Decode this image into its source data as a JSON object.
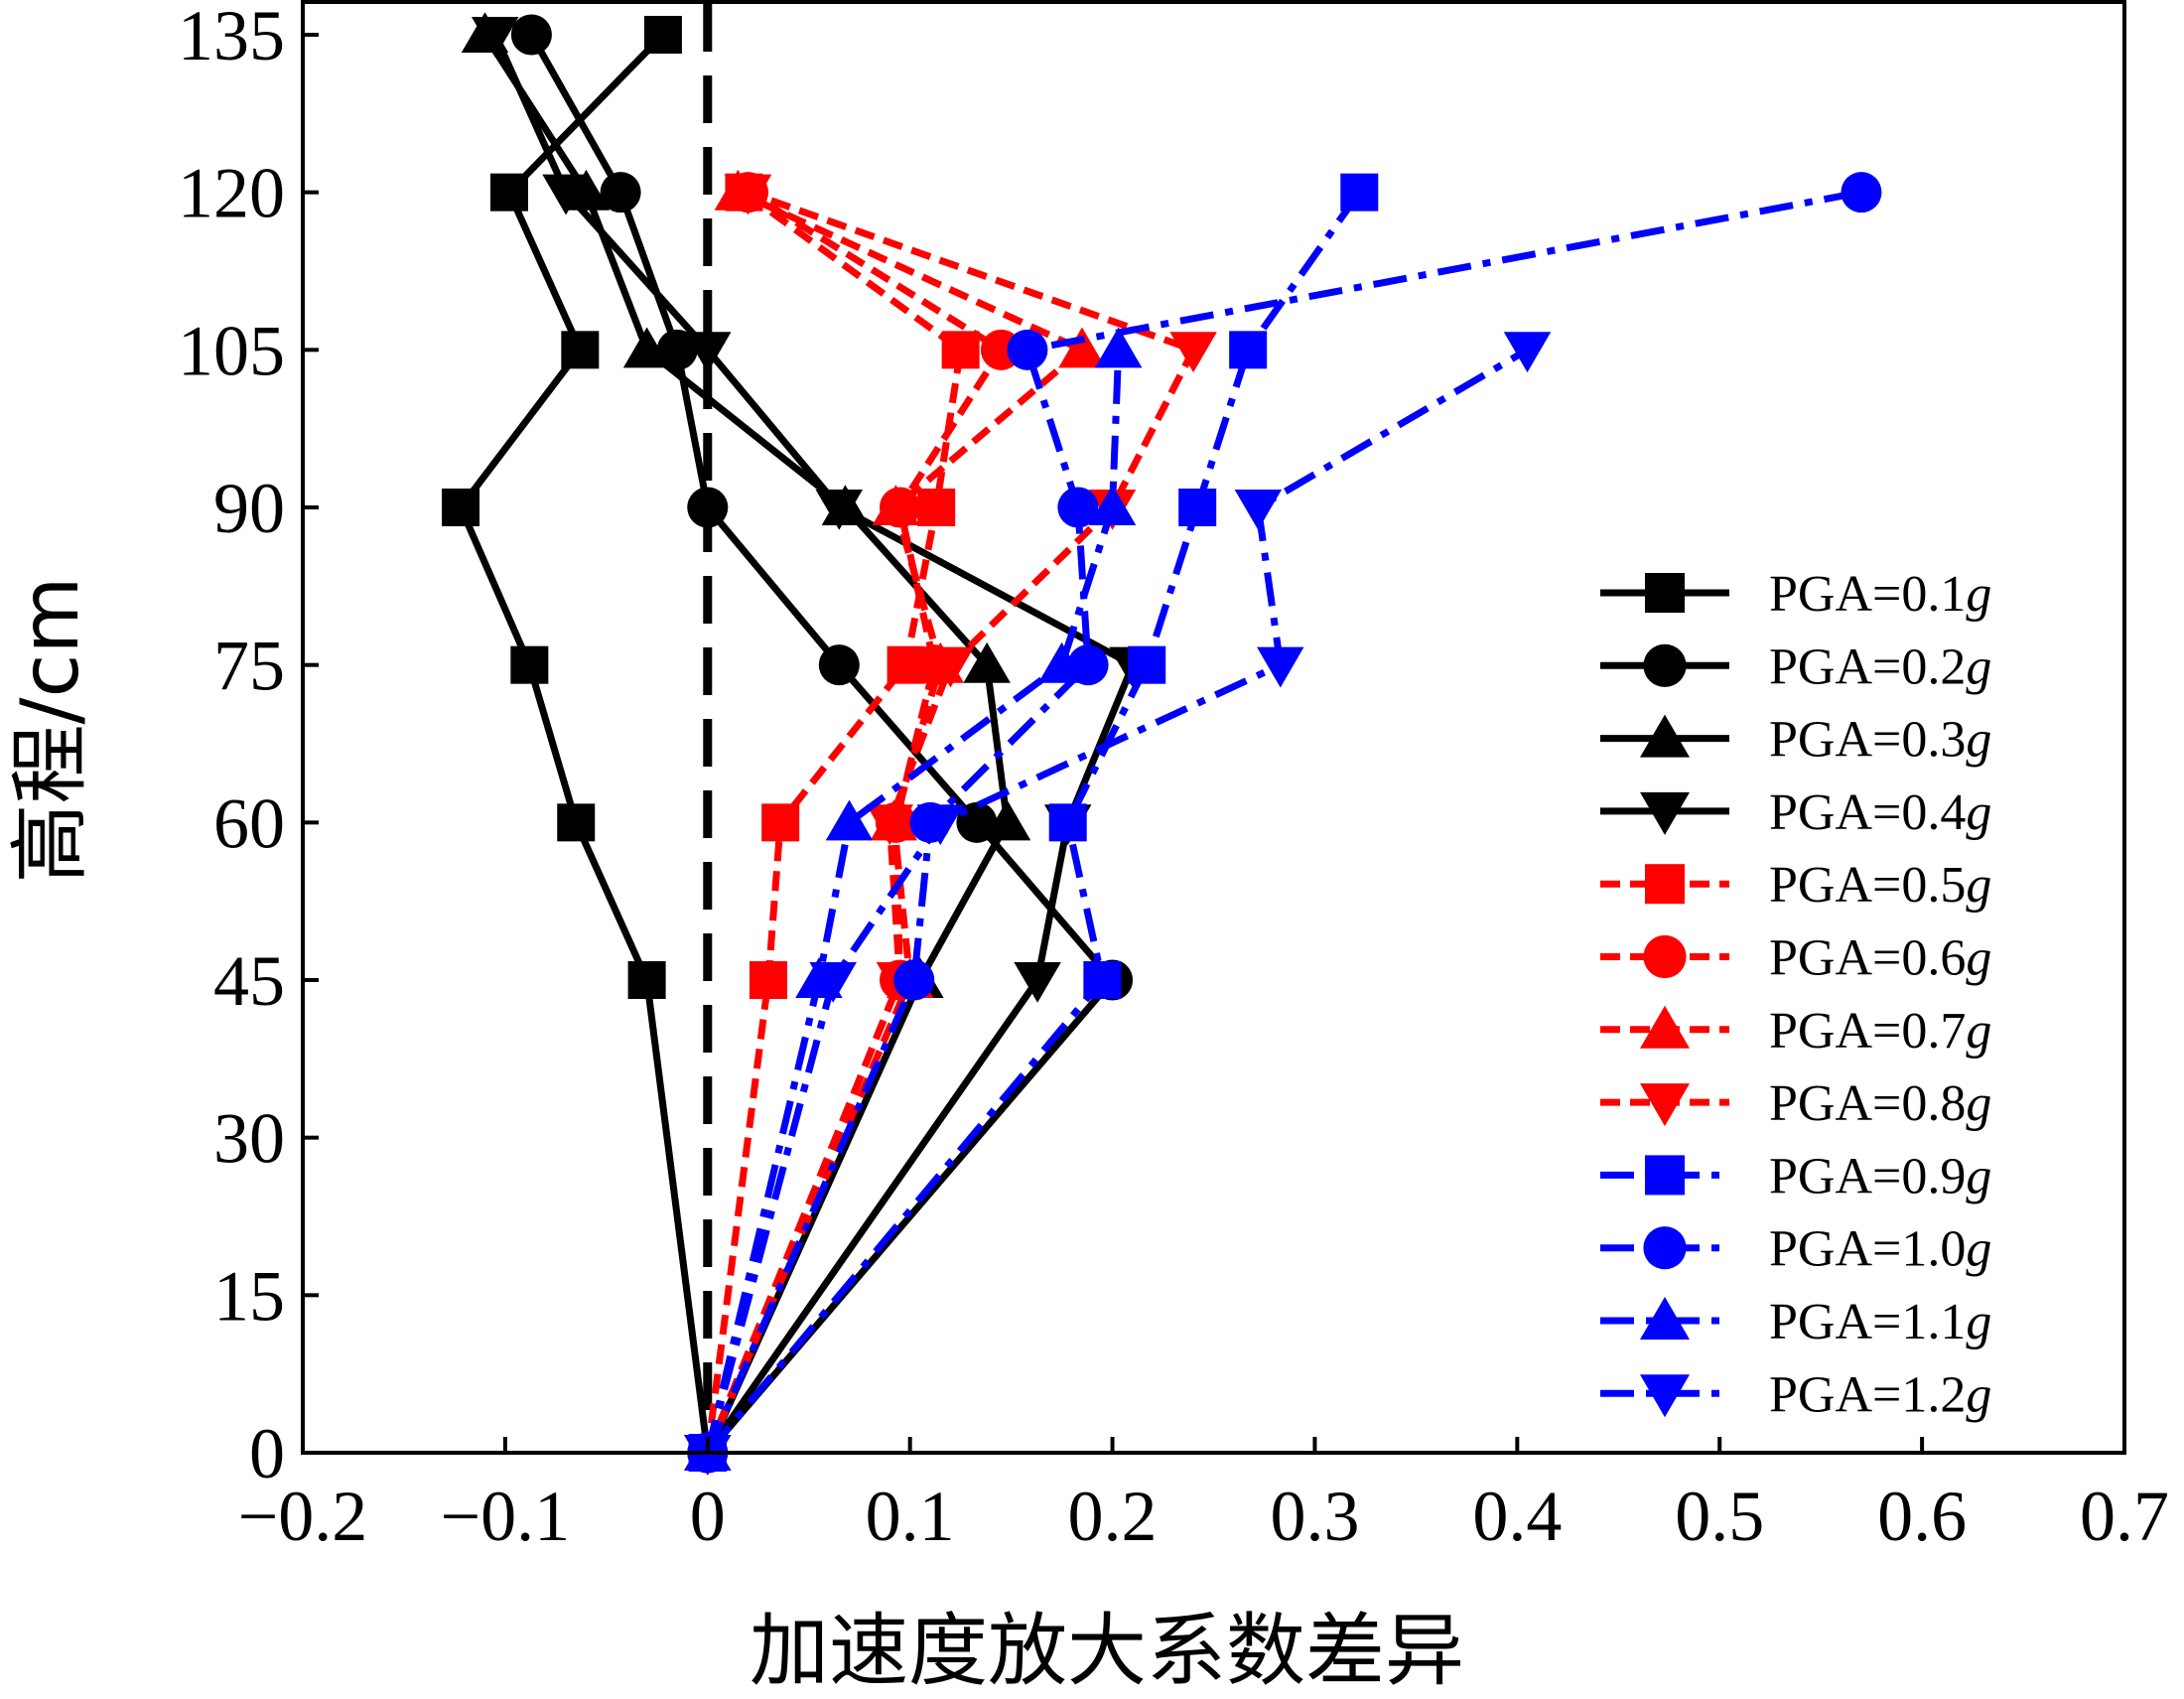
{
  "chart_data": {
    "type": "line",
    "title": "",
    "xlabel": "加速度放大系数差异",
    "ylabel": "高程/cm",
    "xlim": [
      -0.2,
      0.7
    ],
    "ylim": [
      0,
      135
    ],
    "xticks": [
      -0.2,
      -0.1,
      0,
      0.1,
      0.2,
      0.3,
      0.4,
      0.5,
      0.6,
      0.7
    ],
    "xtick_labels": [
      "−0.2",
      "−0.1",
      "0",
      "0.1",
      "0.2",
      "0.3",
      "0.4",
      "0.5",
      "0.6",
      "0.7"
    ],
    "yticks": [
      0,
      15,
      30,
      45,
      60,
      75,
      90,
      105,
      120,
      135
    ],
    "ytick_labels": [
      "0",
      "15",
      "30",
      "45",
      "60",
      "75",
      "90",
      "105",
      "120",
      "135"
    ],
    "reference_line": {
      "x": 0,
      "style": "dashed",
      "color": "#000000"
    },
    "legend": {
      "placement": "right",
      "entries": [
        "PGA=0.1g",
        "PGA=0.2g",
        "PGA=0.3g",
        "PGA=0.4g",
        "PGA=0.5g",
        "PGA=0.6g",
        "PGA=0.7g",
        "PGA=0.8g",
        "PGA=0.9g",
        "PGA=1.0g",
        "PGA=1.1g",
        "PGA=1.2g"
      ]
    },
    "y": [
      0,
      45,
      60,
      75,
      90,
      105,
      120,
      135
    ],
    "series": [
      {
        "name": "PGA=0.1g",
        "label_prefix": "PGA=",
        "label_value": "0.1",
        "label_unit": "g",
        "color": "#000000",
        "marker": "square",
        "dash": "solid",
        "x": [
          0,
          -0.03,
          -0.065,
          -0.088,
          -0.122,
          -0.063,
          -0.098,
          -0.022
        ]
      },
      {
        "name": "PGA=0.2g",
        "label_prefix": "PGA=",
        "label_value": "0.2",
        "label_unit": "g",
        "color": "#000000",
        "marker": "circle",
        "dash": "solid",
        "x": [
          0,
          0.2,
          0.133,
          0.065,
          0,
          -0.015,
          -0.043,
          -0.087
        ]
      },
      {
        "name": "PGA=0.3g",
        "label_prefix": "PGA=",
        "label_value": "0.3",
        "label_unit": "g",
        "color": "#000000",
        "marker": "triangle-up",
        "dash": "solid",
        "x": [
          0,
          0.105,
          0.148,
          0.138,
          0.068,
          -0.03,
          -0.06,
          -0.11
        ]
      },
      {
        "name": "PGA=0.4g",
        "label_prefix": "PGA=",
        "label_value": "0.4",
        "label_unit": "g",
        "color": "#000000",
        "marker": "triangle-down",
        "dash": "solid",
        "x": [
          0,
          0.163,
          0.178,
          0.21,
          0.065,
          0,
          -0.07,
          -0.105
        ]
      },
      {
        "name": "PGA=0.5g",
        "label_prefix": "PGA=",
        "label_value": "0.5",
        "label_unit": "g",
        "color": "#ff0000",
        "marker": "square",
        "dash": "dashed",
        "x": [
          0,
          0.03,
          0.036,
          0.098,
          0.113,
          0.125,
          0.018,
          null
        ]
      },
      {
        "name": "PGA=0.6g",
        "label_prefix": "PGA=",
        "label_value": "0.6",
        "label_unit": "g",
        "color": "#ff0000",
        "marker": "circle",
        "dash": "dashed",
        "x": [
          0,
          0.095,
          0.093,
          0.112,
          0.095,
          0.145,
          0.02,
          null
        ]
      },
      {
        "name": "PGA=0.7g",
        "label_prefix": "PGA=",
        "label_value": "0.7",
        "label_unit": "g",
        "color": "#ff0000",
        "marker": "triangle-up",
        "dash": "dashed",
        "x": [
          0,
          0.1,
          0.092,
          0.115,
          0.093,
          0.185,
          0.015,
          null
        ]
      },
      {
        "name": "PGA=0.8g",
        "label_prefix": "PGA=",
        "label_value": "0.8",
        "label_unit": "g",
        "color": "#ff0000",
        "marker": "triangle-down",
        "dash": "dashed",
        "x": [
          0,
          0.095,
          0.09,
          0.12,
          0.2,
          0.24,
          0.02,
          null
        ]
      },
      {
        "name": "PGA=0.9g",
        "label_prefix": "PGA=",
        "label_value": "0.9",
        "label_unit": "g",
        "color": "#0000ff",
        "marker": "square",
        "dash": "dashdot",
        "x": [
          0,
          0.195,
          0.178,
          0.217,
          0.242,
          0.267,
          0.322,
          null
        ]
      },
      {
        "name": "PGA=1.0g",
        "label_prefix": "PGA=",
        "label_value": "1.0",
        "label_unit": "g",
        "color": "#0000ff",
        "marker": "circle",
        "dash": "dashdot",
        "x": [
          0,
          0.102,
          0.11,
          0.188,
          0.183,
          0.158,
          0.57,
          null
        ]
      },
      {
        "name": "PGA=1.1g",
        "label_prefix": "PGA=",
        "label_value": "1.1",
        "label_unit": "g",
        "color": "#0000ff",
        "marker": "triangle-up",
        "dash": "dashdot",
        "x": [
          0,
          0.055,
          0.07,
          0.175,
          0.2,
          0.203,
          null,
          null
        ]
      },
      {
        "name": "PGA=1.2g",
        "label_prefix": "PGA=",
        "label_value": "1.2",
        "label_unit": "g",
        "color": "#0000ff",
        "marker": "triangle-down",
        "dash": "dashdot",
        "x": [
          0,
          0.062,
          0.115,
          0.283,
          0.272,
          0.405,
          null,
          null
        ]
      }
    ]
  }
}
